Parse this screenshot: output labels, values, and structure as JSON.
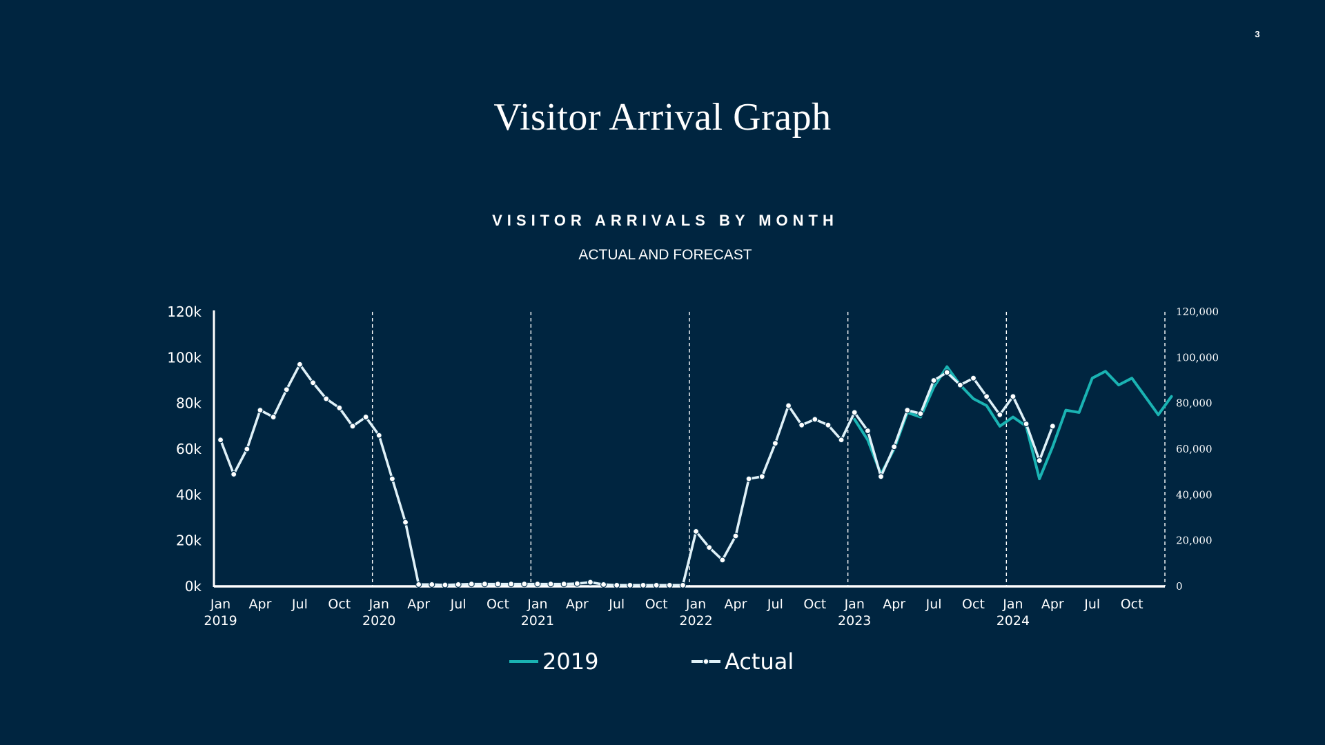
{
  "page_number": "3",
  "slide_title": "Visitor Arrival Graph",
  "colors": {
    "background": "#002540",
    "forecast": "#1ab3b3",
    "actual": "#dff1f8",
    "axis": "#ffffff"
  },
  "chart_data": {
    "type": "line",
    "title": "VISITOR ARRIVALS BY MONTH",
    "subtitle": "ACTUAL AND FORECAST",
    "xlabel": "",
    "ylabel": "",
    "ylim": [
      0,
      120000
    ],
    "grid": false,
    "legend_position": "bottom",
    "y_ticks_left": [
      "0k",
      "20k",
      "40k",
      "60k",
      "80k",
      "100k",
      "120k"
    ],
    "y_ticks_right": [
      "0",
      "20,000",
      "40,000",
      "60,000",
      "80,000",
      "100,000",
      "120,000"
    ],
    "x_month_labels": [
      "Jan",
      "Apr",
      "Jul",
      "Oct",
      "Jan",
      "Apr",
      "Jul",
      "Oct",
      "Jan",
      "Apr",
      "Jul",
      "Oct",
      "Jan",
      "Apr",
      "Jul",
      "Oct",
      "Jan",
      "Apr",
      "Jul",
      "Oct",
      "Jan",
      "Apr",
      "Jul",
      "Oct"
    ],
    "x_year_labels": [
      "2019",
      "2020",
      "2021",
      "2022",
      "2023",
      "2024"
    ],
    "x_start": "2019-01",
    "year_dividers_after_month_index": [
      11,
      23,
      35,
      47,
      59,
      71
    ],
    "series": [
      {
        "name": "2019",
        "style": "line",
        "start_index": 48,
        "values": [
          73000,
          64000,
          49000,
          60000,
          76000,
          74000,
          87000,
          96000,
          88000,
          82000,
          79000,
          70000,
          74000,
          70000,
          47000,
          61000,
          77000,
          76000,
          91000,
          94000,
          88000,
          91000,
          83000,
          75000,
          83000
        ]
      },
      {
        "name": "Actual",
        "style": "line-markers",
        "start_index": 0,
        "values": [
          64000,
          49000,
          60000,
          77000,
          74000,
          86000,
          97000,
          89000,
          82000,
          78000,
          70000,
          74000,
          66000,
          47000,
          28000,
          800,
          800,
          600,
          800,
          1000,
          1000,
          1000,
          1000,
          1000,
          1000,
          1000,
          1000,
          1200,
          1800,
          800,
          500,
          500,
          500,
          500,
          500,
          500,
          24000,
          17000,
          11500,
          22000,
          47000,
          48000,
          62500,
          79000,
          70500,
          73000,
          70500,
          64000,
          76000,
          68000,
          48000,
          61000,
          77000,
          75500,
          90000,
          93500,
          88000,
          91000,
          83000,
          75000,
          83000,
          71000,
          55000,
          70000
        ]
      }
    ]
  }
}
